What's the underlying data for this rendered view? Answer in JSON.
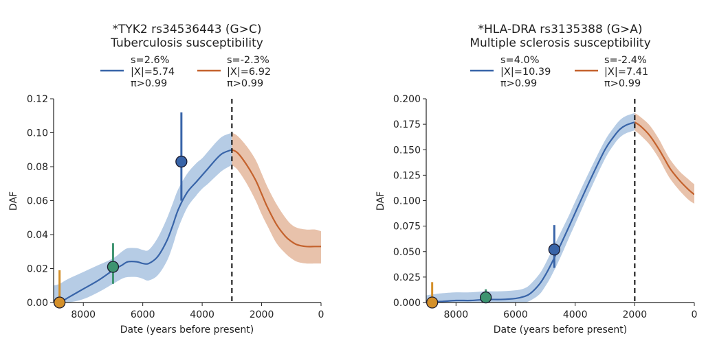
{
  "chart_data": [
    {
      "type": "line",
      "title": "*TYK2 rs34536443 (G>C)",
      "subtitle": "Tuberculosis susceptibility",
      "xlabel": "Date (years before present)",
      "ylabel": "DAF",
      "xlim": [
        9000,
        0
      ],
      "ylim": [
        0,
        0.12
      ],
      "x_ticks": [
        8000,
        6000,
        4000,
        2000,
        0
      ],
      "x_tick_labels": [
        "8000",
        "6000",
        "4000",
        "2000",
        "0"
      ],
      "y_ticks": [
        0,
        0.02,
        0.04,
        0.06,
        0.08,
        0.1,
        0.12
      ],
      "y_tick_labels": [
        "0.00",
        "0.02",
        "0.04",
        "0.06",
        "0.08",
        "0.10",
        "0.12"
      ],
      "grid": false,
      "legend_position": "top-center",
      "change_point": 3000,
      "series": [
        {
          "legend": [
            "s=2.6%",
            "|X|=5.74",
            "π>0.99"
          ],
          "color": "#3864a8",
          "band_color": "#a9c3e0",
          "x": [
            9000,
            8800,
            8500,
            8000,
            7500,
            7000,
            6700,
            6500,
            6200,
            6000,
            5800,
            5500,
            5200,
            5000,
            4800,
            4500,
            4200,
            4000,
            3800,
            3500,
            3300,
            3000
          ],
          "y": [
            0.0,
            0.0,
            0.003,
            0.008,
            0.013,
            0.019,
            0.022,
            0.024,
            0.024,
            0.023,
            0.023,
            0.027,
            0.036,
            0.045,
            0.055,
            0.065,
            0.071,
            0.075,
            0.079,
            0.085,
            0.088,
            0.09
          ],
          "lower": [
            0.0,
            0.0,
            0.0,
            0.002,
            0.006,
            0.011,
            0.014,
            0.015,
            0.015,
            0.014,
            0.013,
            0.016,
            0.024,
            0.033,
            0.044,
            0.056,
            0.063,
            0.067,
            0.07,
            0.075,
            0.078,
            0.081
          ],
          "upper": [
            0.01,
            0.011,
            0.014,
            0.018,
            0.022,
            0.026,
            0.03,
            0.032,
            0.032,
            0.031,
            0.031,
            0.038,
            0.049,
            0.058,
            0.067,
            0.076,
            0.082,
            0.085,
            0.089,
            0.095,
            0.098,
            0.1
          ]
        },
        {
          "legend": [
            "s=-2.3%",
            "|X|=6.92",
            "π>0.99"
          ],
          "color": "#c4622d",
          "band_color": "#e4b79c",
          "x": [
            3000,
            2800,
            2500,
            2200,
            2000,
            1800,
            1500,
            1200,
            1000,
            800,
            500,
            200,
            0
          ],
          "y": [
            0.09,
            0.088,
            0.081,
            0.072,
            0.064,
            0.056,
            0.046,
            0.039,
            0.036,
            0.034,
            0.033,
            0.033,
            0.033
          ],
          "lower": [
            0.081,
            0.078,
            0.07,
            0.06,
            0.052,
            0.045,
            0.035,
            0.029,
            0.026,
            0.024,
            0.023,
            0.023,
            0.023
          ],
          "upper": [
            0.1,
            0.098,
            0.092,
            0.084,
            0.076,
            0.068,
            0.058,
            0.05,
            0.046,
            0.044,
            0.043,
            0.043,
            0.042
          ]
        }
      ],
      "points": [
        {
          "x": 8800,
          "y": 0.0,
          "lo": 0.0,
          "hi": 0.019,
          "color": "#d4902a"
        },
        {
          "x": 7000,
          "y": 0.021,
          "lo": 0.011,
          "hi": 0.035,
          "color": "#3d9470"
        },
        {
          "x": 4700,
          "y": 0.083,
          "lo": 0.06,
          "hi": 0.112,
          "color": "#3864a8"
        }
      ]
    },
    {
      "type": "line",
      "title": "*HLA-DRA rs3135388 (G>A)",
      "subtitle": "Multiple sclerosis susceptibility",
      "xlabel": "Date (years before present)",
      "ylabel": "DAF",
      "xlim": [
        9000,
        0
      ],
      "ylim": [
        0,
        0.2
      ],
      "x_ticks": [
        8000,
        6000,
        4000,
        2000,
        0
      ],
      "x_tick_labels": [
        "8000",
        "6000",
        "4000",
        "2000",
        "0"
      ],
      "y_ticks": [
        0,
        0.025,
        0.05,
        0.075,
        0.1,
        0.125,
        0.15,
        0.175,
        0.2
      ],
      "y_tick_labels": [
        "0.000",
        "0.025",
        "0.050",
        "0.075",
        "0.100",
        "0.125",
        "0.150",
        "0.175",
        "0.200"
      ],
      "grid": false,
      "legend_position": "top-center",
      "change_point": 2000,
      "series": [
        {
          "legend": [
            "s=4.0%",
            "|X|=10.39",
            "π>0.99"
          ],
          "color": "#3864a8",
          "band_color": "#a9c3e0",
          "x": [
            9000,
            8800,
            8500,
            8000,
            7500,
            7000,
            6500,
            6000,
            5700,
            5500,
            5200,
            5000,
            4800,
            4500,
            4200,
            4000,
            3500,
            3000,
            2700,
            2500,
            2300,
            2000
          ],
          "y": [
            0.0,
            0.001,
            0.001,
            0.002,
            0.002,
            0.003,
            0.003,
            0.004,
            0.006,
            0.009,
            0.018,
            0.027,
            0.038,
            0.056,
            0.075,
            0.088,
            0.12,
            0.15,
            0.163,
            0.17,
            0.174,
            0.177
          ],
          "lower": [
            0.0,
            0.0,
            0.0,
            0.0,
            0.0,
            0.0,
            0.0,
            0.0,
            0.0,
            0.002,
            0.008,
            0.016,
            0.026,
            0.044,
            0.064,
            0.077,
            0.11,
            0.141,
            0.155,
            0.162,
            0.166,
            0.169
          ],
          "upper": [
            0.007,
            0.008,
            0.009,
            0.01,
            0.01,
            0.011,
            0.011,
            0.012,
            0.014,
            0.018,
            0.028,
            0.038,
            0.05,
            0.068,
            0.086,
            0.099,
            0.13,
            0.159,
            0.172,
            0.179,
            0.183,
            0.186
          ]
        },
        {
          "legend": [
            "s=-2.4%",
            "|X|=7.41",
            "π>0.99"
          ],
          "color": "#c4622d",
          "band_color": "#e4b79c",
          "x": [
            2000,
            1800,
            1500,
            1200,
            1000,
            800,
            500,
            200,
            0
          ],
          "y": [
            0.177,
            0.173,
            0.164,
            0.151,
            0.141,
            0.131,
            0.12,
            0.111,
            0.106
          ],
          "lower": [
            0.169,
            0.164,
            0.155,
            0.142,
            0.131,
            0.121,
            0.11,
            0.101,
            0.097
          ],
          "upper": [
            0.186,
            0.182,
            0.174,
            0.161,
            0.15,
            0.14,
            0.129,
            0.121,
            0.116
          ]
        }
      ],
      "points": [
        {
          "x": 8800,
          "y": 0.0,
          "lo": 0.0,
          "hi": 0.02,
          "color": "#d4902a"
        },
        {
          "x": 7000,
          "y": 0.005,
          "lo": 0.0,
          "hi": 0.013,
          "color": "#3d9470"
        },
        {
          "x": 4700,
          "y": 0.052,
          "lo": 0.034,
          "hi": 0.076,
          "color": "#3864a8"
        }
      ]
    }
  ]
}
